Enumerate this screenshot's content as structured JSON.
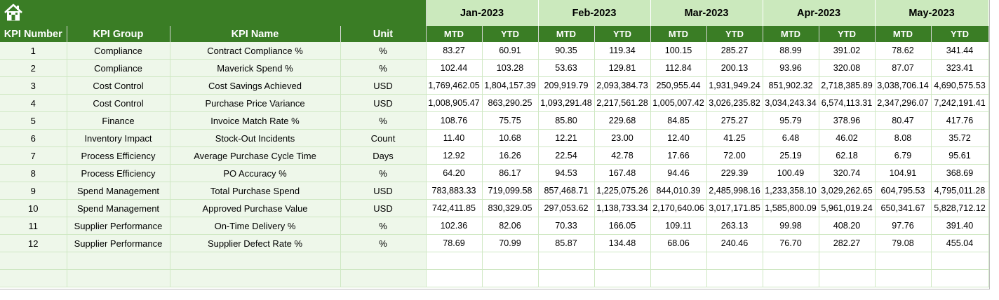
{
  "months": [
    "Jan-2023",
    "Feb-2023",
    "Mar-2023",
    "Apr-2023",
    "May-2023"
  ],
  "columns": {
    "kpi_number": "KPI Number",
    "kpi_group": "KPI Group",
    "kpi_name": "KPI Name",
    "unit": "Unit",
    "mtd": "MTD",
    "ytd": "YTD"
  },
  "home_icon": "home-icon",
  "colors": {
    "header_green": "#3a7d25",
    "month_green": "#cbe9bd",
    "row_tint": "#eef7ea"
  },
  "rows": [
    {
      "num": "1",
      "group": "Compliance",
      "name": "Contract Compliance %",
      "unit": "%",
      "values": [
        "83.27",
        "60.91",
        "90.35",
        "119.34",
        "100.15",
        "285.27",
        "88.99",
        "391.02",
        "78.62",
        "341.44"
      ]
    },
    {
      "num": "2",
      "group": "Compliance",
      "name": "Maverick Spend %",
      "unit": "%",
      "values": [
        "102.44",
        "103.28",
        "53.63",
        "129.81",
        "112.84",
        "200.13",
        "93.96",
        "320.08",
        "87.07",
        "323.41"
      ]
    },
    {
      "num": "3",
      "group": "Cost Control",
      "name": "Cost Savings Achieved",
      "unit": "USD",
      "values": [
        "1,769,462.05",
        "1,804,157.39",
        "209,919.79",
        "2,093,384.73",
        "250,955.44",
        "1,931,949.24",
        "851,902.32",
        "2,718,385.89",
        "3,038,706.14",
        "4,690,575.53"
      ]
    },
    {
      "num": "4",
      "group": "Cost Control",
      "name": "Purchase Price Variance",
      "unit": "USD",
      "values": [
        "1,008,905.47",
        "863,290.25",
        "1,093,291.48",
        "2,217,561.28",
        "1,005,007.42",
        "3,026,235.82",
        "3,034,243.34",
        "6,574,113.31",
        "2,347,296.07",
        "7,242,191.41"
      ]
    },
    {
      "num": "5",
      "group": "Finance",
      "name": "Invoice Match Rate %",
      "unit": "%",
      "values": [
        "108.76",
        "75.75",
        "85.80",
        "229.68",
        "84.85",
        "275.27",
        "95.79",
        "378.96",
        "80.47",
        "417.76"
      ]
    },
    {
      "num": "6",
      "group": "Inventory Impact",
      "name": "Stock-Out Incidents",
      "unit": "Count",
      "values": [
        "11.40",
        "10.68",
        "12.21",
        "23.00",
        "12.40",
        "41.25",
        "6.48",
        "46.02",
        "8.08",
        "35.72"
      ]
    },
    {
      "num": "7",
      "group": "Process Efficiency",
      "name": "Average Purchase Cycle Time",
      "unit": "Days",
      "values": [
        "12.92",
        "16.26",
        "22.54",
        "42.78",
        "17.66",
        "72.00",
        "25.19",
        "62.18",
        "6.79",
        "95.61"
      ]
    },
    {
      "num": "8",
      "group": "Process Efficiency",
      "name": "PO Accuracy %",
      "unit": "%",
      "values": [
        "64.20",
        "86.17",
        "94.53",
        "167.48",
        "94.46",
        "229.39",
        "100.49",
        "320.74",
        "104.91",
        "368.69"
      ]
    },
    {
      "num": "9",
      "group": "Spend Management",
      "name": "Total Purchase Spend",
      "unit": "USD",
      "values": [
        "783,883.33",
        "719,099.58",
        "857,468.71",
        "1,225,075.26",
        "844,010.39",
        "2,485,998.16",
        "1,233,358.10",
        "3,029,262.65",
        "604,795.53",
        "4,795,011.28"
      ]
    },
    {
      "num": "10",
      "group": "Spend Management",
      "name": "Approved Purchase Value",
      "unit": "USD",
      "values": [
        "742,411.85",
        "830,329.05",
        "297,053.62",
        "1,138,733.34",
        "2,170,640.06",
        "3,017,171.85",
        "1,585,800.09",
        "5,961,019.24",
        "650,341.67",
        "5,828,712.12"
      ]
    },
    {
      "num": "11",
      "group": "Supplier Performance",
      "name": "On-Time Delivery %",
      "unit": "%",
      "values": [
        "102.36",
        "82.06",
        "70.33",
        "166.05",
        "109.11",
        "263.13",
        "99.98",
        "408.20",
        "97.76",
        "391.40"
      ]
    },
    {
      "num": "12",
      "group": "Supplier Performance",
      "name": "Supplier Defect Rate %",
      "unit": "%",
      "values": [
        "78.69",
        "70.99",
        "85.87",
        "134.48",
        "68.06",
        "240.46",
        "76.70",
        "282.27",
        "79.08",
        "455.04"
      ]
    }
  ]
}
